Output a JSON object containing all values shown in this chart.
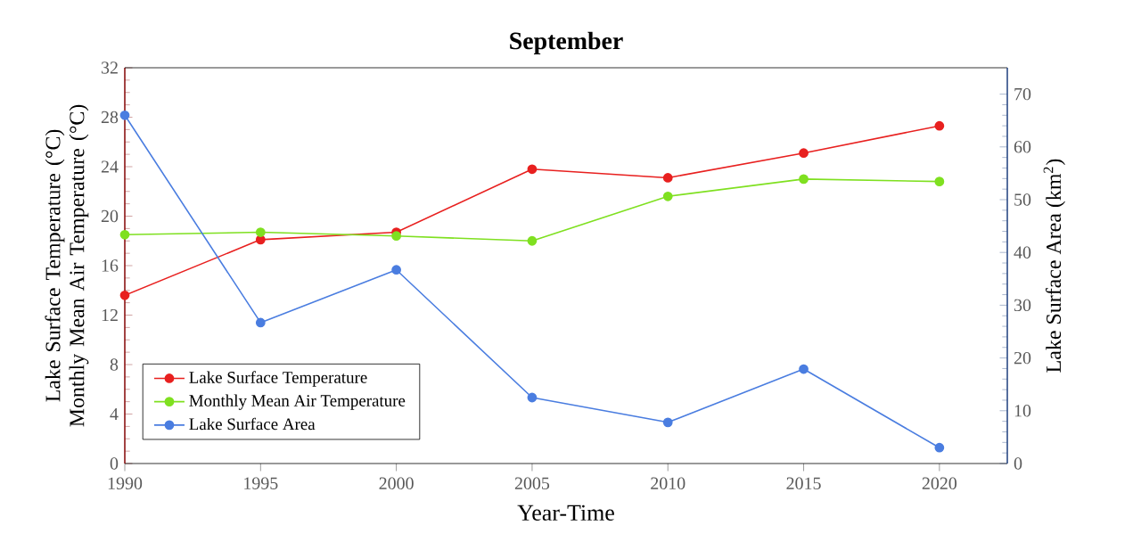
{
  "chart_data": {
    "type": "line",
    "title": "September",
    "xlabel": "Year-Time",
    "ylabel": "Lake Surface Temperature (°C) Monthly Mean Air Temperature (°C)",
    "y2label": "Lake Surface Area (km$^{2}$)",
    "x": [
      1990,
      1995,
      2000,
      2005,
      2010,
      2015,
      2020
    ],
    "xlim": [
      1990,
      2022.5
    ],
    "xticks": [
      1990,
      1995,
      2000,
      2005,
      2010,
      2015,
      2020
    ],
    "ylim": [
      0,
      32
    ],
    "yticks": [
      0,
      4,
      8,
      12,
      16,
      20,
      24,
      28,
      32
    ],
    "y2lim": [
      0,
      75
    ],
    "y2ticks": [
      0,
      10,
      20,
      30,
      40,
      50,
      60,
      70
    ],
    "marker": "circle",
    "legend": "bottom left",
    "series": [
      {
        "name": "Lake Surface Temperature",
        "color": "#e8201f",
        "values": [
          13.6,
          18.1,
          18.7,
          23.8,
          23.1,
          25.1,
          27.3
        ]
      },
      {
        "name": "Monthly Mean Air Temperature",
        "color": "#7fe020",
        "values": [
          18.5,
          18.7,
          18.4,
          18.0,
          21.6,
          23.0,
          22.8
        ]
      },
      {
        "name": "Lake Surface Area",
        "color": "#4a7de0",
        "axis": "y2",
        "values": [
          66,
          26.7,
          36.7,
          12.5,
          7.8,
          17.9,
          3.0
        ]
      }
    ]
  }
}
